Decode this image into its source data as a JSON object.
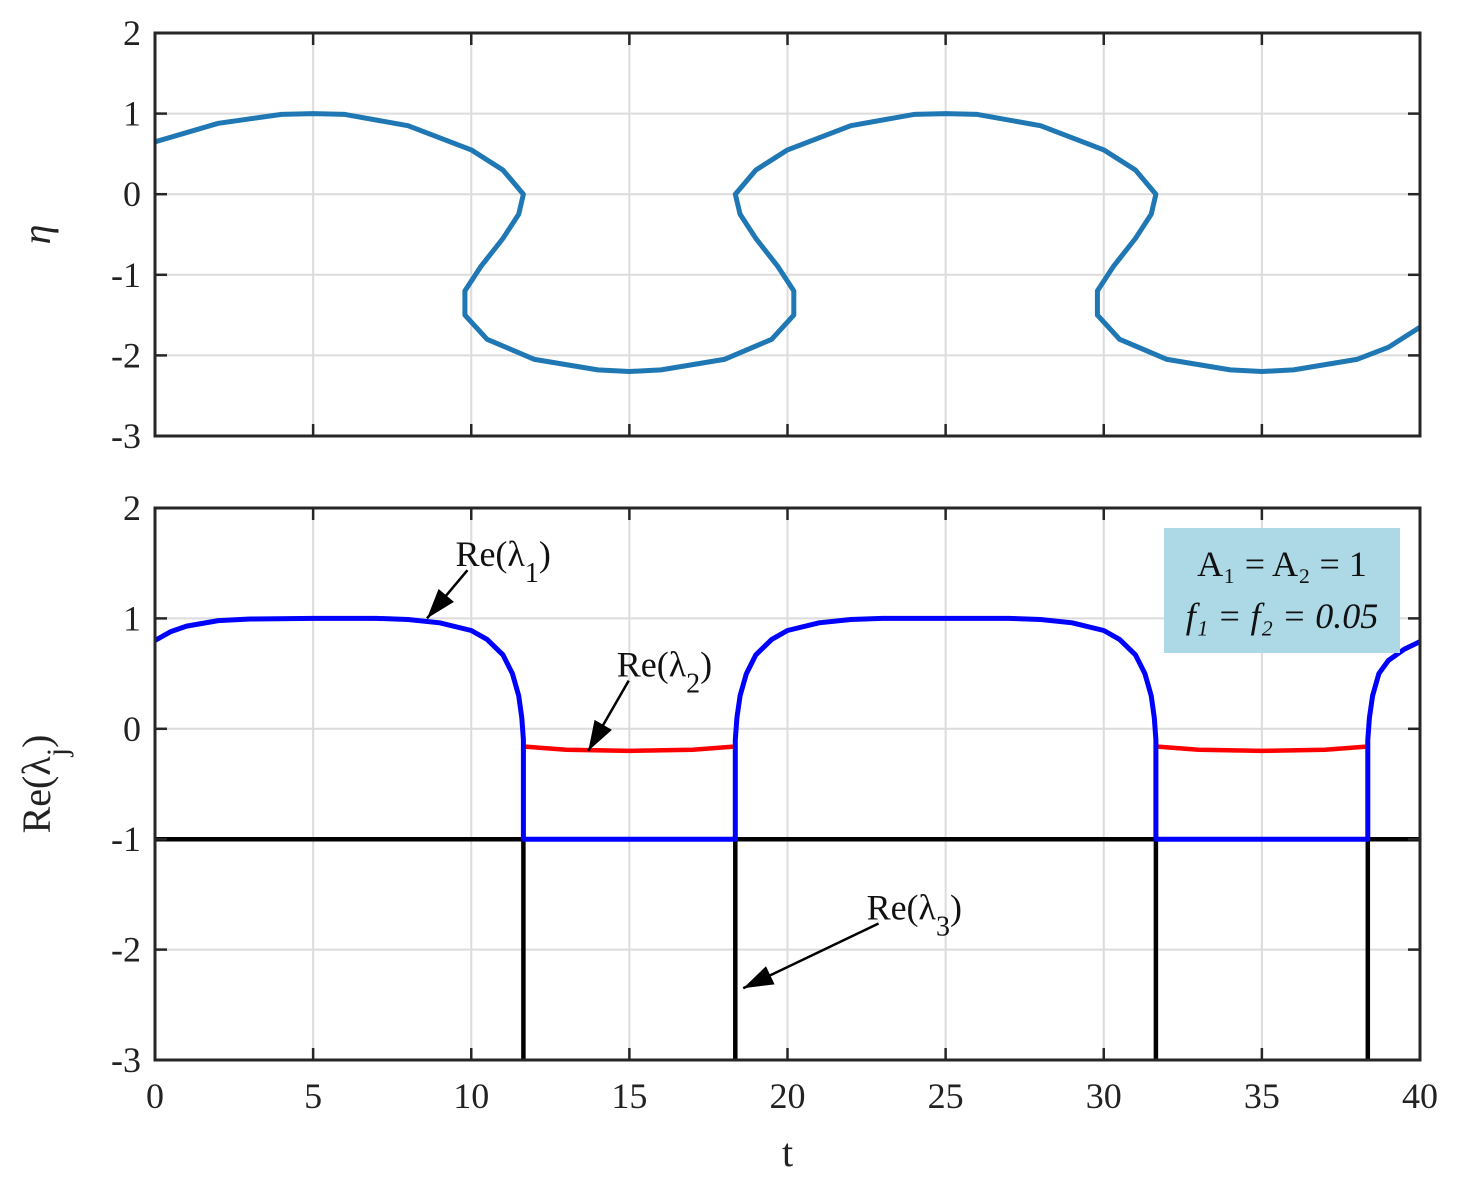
{
  "chart_data": [
    {
      "type": "line",
      "ylabel": "η",
      "xlabel": "",
      "xlim": [
        0,
        40
      ],
      "ylim": [
        -3,
        2
      ],
      "xticks": [
        0,
        5,
        10,
        15,
        20,
        25,
        30,
        35,
        40
      ],
      "yticks": [
        -3,
        -2,
        -1,
        0,
        1,
        2
      ],
      "xtick_labels": [
        "",
        "",
        "",
        "",
        "",
        "",
        "",
        "",
        ""
      ],
      "ytick_labels": [
        "-3",
        "-2",
        "-1",
        "0",
        "1",
        "2"
      ],
      "grid": true,
      "series": [
        {
          "color": "#1f77b4",
          "points": [
            [
              0.0,
              0.65
            ],
            [
              2.0,
              0.88
            ],
            [
              4.0,
              0.99
            ],
            [
              5.0,
              1.0
            ],
            [
              6.0,
              0.99
            ],
            [
              8.0,
              0.85
            ],
            [
              10.0,
              0.55
            ],
            [
              11.0,
              0.3
            ],
            [
              11.65,
              0.0
            ],
            [
              11.5,
              -0.25
            ],
            [
              11.0,
              -0.55
            ],
            [
              10.3,
              -0.9
            ],
            [
              9.8,
              -1.2
            ],
            [
              9.8,
              -1.5
            ],
            [
              10.5,
              -1.8
            ],
            [
              12.0,
              -2.05
            ],
            [
              14.0,
              -2.18
            ],
            [
              15.0,
              -2.2
            ],
            [
              16.0,
              -2.18
            ],
            [
              18.0,
              -2.05
            ],
            [
              19.5,
              -1.8
            ],
            [
              20.2,
              -1.5
            ],
            [
              20.2,
              -1.2
            ],
            [
              19.7,
              -0.9
            ],
            [
              19.0,
              -0.55
            ],
            [
              18.5,
              -0.25
            ],
            [
              18.35,
              0.0
            ],
            [
              19.0,
              0.3
            ],
            [
              20.0,
              0.55
            ],
            [
              22.0,
              0.85
            ],
            [
              24.0,
              0.99
            ],
            [
              25.0,
              1.0
            ],
            [
              26.0,
              0.99
            ],
            [
              28.0,
              0.85
            ],
            [
              30.0,
              0.55
            ],
            [
              31.0,
              0.3
            ],
            [
              31.65,
              0.0
            ],
            [
              31.5,
              -0.25
            ],
            [
              31.0,
              -0.55
            ],
            [
              30.3,
              -0.9
            ],
            [
              29.8,
              -1.2
            ],
            [
              29.8,
              -1.5
            ],
            [
              30.5,
              -1.8
            ],
            [
              32.0,
              -2.05
            ],
            [
              34.0,
              -2.18
            ],
            [
              35.0,
              -2.2
            ],
            [
              36.0,
              -2.18
            ],
            [
              38.0,
              -2.05
            ],
            [
              39.0,
              -1.9
            ],
            [
              40.0,
              -1.65
            ]
          ]
        }
      ]
    },
    {
      "type": "line",
      "xlabel": "t",
      "ylabel": "Re(λj)",
      "xlim": [
        0,
        40
      ],
      "ylim": [
        -3,
        2
      ],
      "xticks": [
        0,
        5,
        10,
        15,
        20,
        25,
        30,
        35,
        40
      ],
      "yticks": [
        -3,
        -2,
        -1,
        0,
        1,
        2
      ],
      "xtick_labels": [
        "0",
        "5",
        "10",
        "15",
        "20",
        "25",
        "30",
        "35",
        "40"
      ],
      "ytick_labels": [
        "-3",
        "-2",
        "-1",
        "0",
        "1",
        "2"
      ],
      "grid": true,
      "series": [
        {
          "color": "#000000",
          "points": [
            [
              0,
              -1
            ],
            [
              11.65,
              -1
            ],
            [
              11.65,
              -3
            ],
            [
              11.65,
              -1
            ],
            [
              18.35,
              -1
            ],
            [
              18.35,
              -3
            ],
            [
              18.35,
              -1
            ],
            [
              31.65,
              -1
            ],
            [
              31.65,
              -3
            ],
            [
              31.65,
              -1
            ],
            [
              38.35,
              -1
            ],
            [
              38.35,
              -3
            ],
            [
              38.35,
              -1
            ],
            [
              40,
              -1
            ]
          ]
        },
        {
          "color": "#ff0000",
          "points": [
            [
              11.65,
              -0.16
            ],
            [
              13.0,
              -0.19
            ],
            [
              15.0,
              -0.2
            ],
            [
              17.0,
              -0.19
            ],
            [
              18.35,
              -0.16
            ]
          ]
        },
        {
          "color": "#ff0000",
          "points": [
            [
              31.65,
              -0.16
            ],
            [
              33.0,
              -0.19
            ],
            [
              35.0,
              -0.2
            ],
            [
              37.0,
              -0.19
            ],
            [
              38.35,
              -0.16
            ]
          ]
        },
        {
          "color": "#0000ff",
          "points": [
            [
              0.0,
              0.8
            ],
            [
              0.5,
              0.88
            ],
            [
              1.0,
              0.93
            ],
            [
              2.0,
              0.98
            ],
            [
              3.0,
              0.995
            ],
            [
              5.0,
              1.0
            ],
            [
              7.0,
              1.0
            ],
            [
              8.0,
              0.99
            ],
            [
              9.0,
              0.96
            ],
            [
              10.0,
              0.89
            ],
            [
              10.5,
              0.81
            ],
            [
              11.0,
              0.67
            ],
            [
              11.3,
              0.5
            ],
            [
              11.5,
              0.3
            ],
            [
              11.6,
              0.1
            ],
            [
              11.65,
              -0.1
            ],
            [
              11.65,
              -0.3
            ],
            [
              11.65,
              -1.0
            ],
            [
              18.35,
              -1.0
            ],
            [
              18.35,
              -0.3
            ],
            [
              18.35,
              -0.1
            ],
            [
              18.4,
              0.1
            ],
            [
              18.5,
              0.3
            ],
            [
              18.7,
              0.5
            ],
            [
              19.0,
              0.67
            ],
            [
              19.5,
              0.81
            ],
            [
              20.0,
              0.89
            ],
            [
              21.0,
              0.96
            ],
            [
              22.0,
              0.99
            ],
            [
              23.0,
              1.0
            ],
            [
              27.0,
              1.0
            ],
            [
              28.0,
              0.99
            ],
            [
              29.0,
              0.96
            ],
            [
              30.0,
              0.89
            ],
            [
              30.5,
              0.81
            ],
            [
              31.0,
              0.67
            ],
            [
              31.3,
              0.5
            ],
            [
              31.5,
              0.3
            ],
            [
              31.6,
              0.1
            ],
            [
              31.65,
              -0.1
            ],
            [
              31.65,
              -0.3
            ],
            [
              31.65,
              -1.0
            ],
            [
              38.35,
              -1.0
            ],
            [
              38.35,
              -0.3
            ],
            [
              38.35,
              -0.1
            ],
            [
              38.4,
              0.1
            ],
            [
              38.5,
              0.3
            ],
            [
              38.7,
              0.5
            ],
            [
              39.0,
              0.62
            ],
            [
              39.5,
              0.72
            ],
            [
              40.0,
              0.79
            ]
          ]
        }
      ],
      "annotations": [
        {
          "text": "Re(λ",
          "sub": "1",
          "close": ")",
          "x": 9.5,
          "y": 1.4,
          "arrow_to": [
            8.6,
            1.0
          ]
        },
        {
          "text": "Re(λ",
          "sub": "2",
          "close": ")",
          "x": 14.6,
          "y": 0.4,
          "arrow_to": [
            13.7,
            -0.2
          ]
        },
        {
          "text": "Re(λ",
          "sub": "3",
          "close": ")",
          "x": 22.5,
          "y": -1.8,
          "arrow_to": [
            18.6,
            -2.35
          ]
        }
      ],
      "legend_box": {
        "line1": "A₁ = A₂ = 1",
        "line2": "f₁ = f₂ = 0.05",
        "background": "#add8e6",
        "position": "top-right"
      }
    }
  ]
}
